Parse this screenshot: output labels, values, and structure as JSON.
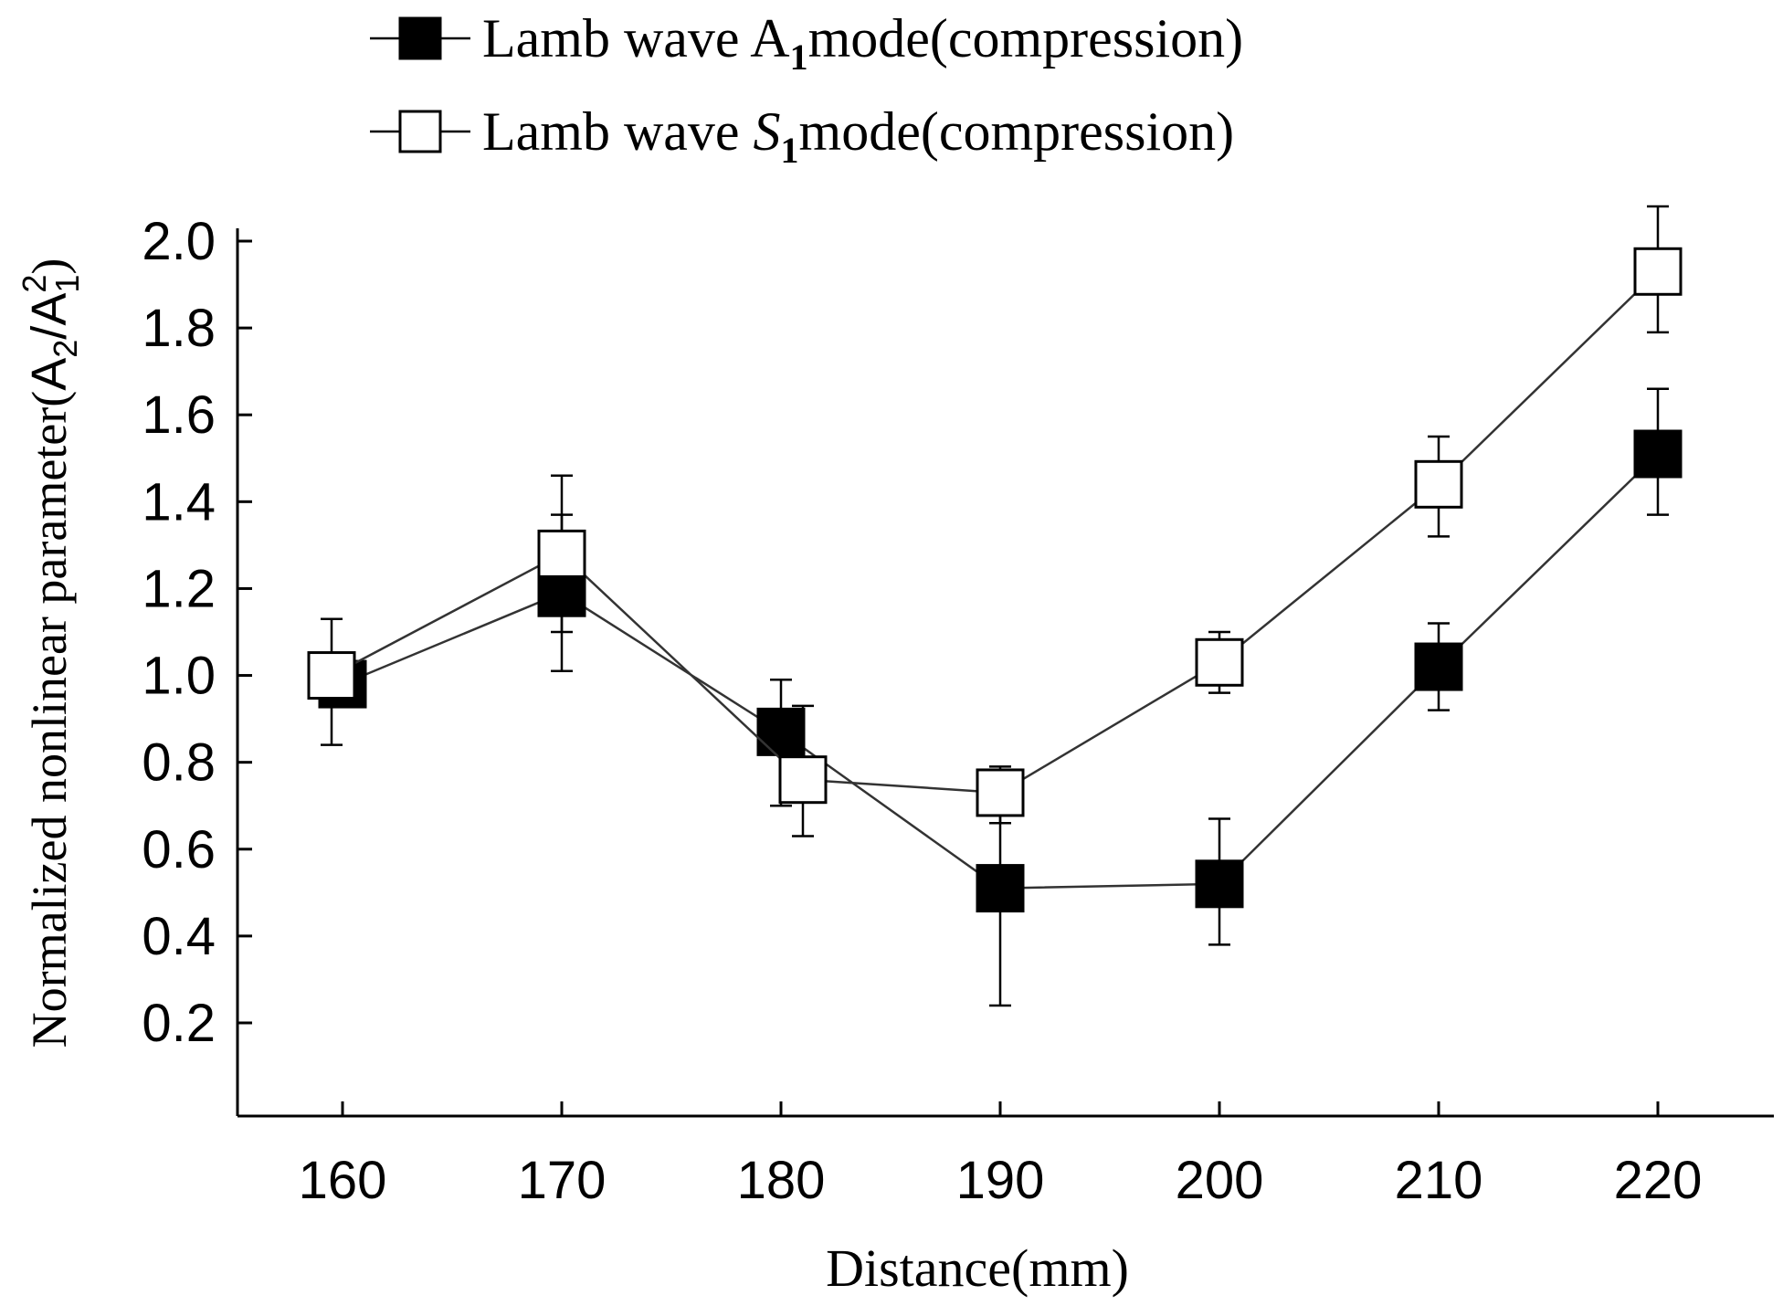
{
  "chart_data": {
    "type": "line",
    "title": "",
    "xlabel": "Distance(mm)",
    "ylabel": "Normalized nonlinear parameter",
    "ylabel_math": {
      "open": "(",
      "base1": "A",
      "sub1": "2",
      "slash": "/",
      "base2": "A",
      "sup2": "2",
      "sub2": "1",
      "close": ")"
    },
    "x": [
      160,
      170,
      180,
      190,
      200,
      210,
      220
    ],
    "xticks": [
      160,
      170,
      180,
      190,
      200,
      210,
      220
    ],
    "xlim": [
      155,
      225
    ],
    "yticks": [
      0.2,
      0.4,
      0.6,
      0.8,
      1.0,
      1.2,
      1.4,
      1.6,
      1.8,
      2.0
    ],
    "ytick_labels": [
      "0.2",
      "0.4",
      "0.6",
      "0.8",
      "1.0",
      "1.2",
      "1.4",
      "1.6",
      "1.8",
      "2.0"
    ],
    "ylim": [
      0.0,
      2.0
    ],
    "grid": false,
    "legend_position": "top-center",
    "series": [
      {
        "name": "Lamb wave A1mode(compression)",
        "legend": {
          "prefix": "Lamb wave ",
          "base": "A",
          "sub": "1",
          "suffix": "mode(compression)",
          "italic": false
        },
        "marker": "filled-square",
        "x": [
          160,
          170,
          180,
          190,
          200,
          210,
          220
        ],
        "values": [
          0.98,
          1.19,
          0.87,
          0.51,
          0.52,
          1.02,
          1.51
        ],
        "err_upper": [
          1.05,
          1.37,
          0.99,
          0.78,
          0.67,
          1.12,
          1.66
        ],
        "err_lower": [
          0.93,
          1.01,
          0.7,
          0.24,
          0.38,
          0.92,
          1.37
        ]
      },
      {
        "name": "Lamb wave S1mode(compression)",
        "legend": {
          "prefix": "Lamb wave ",
          "base": "S",
          "sub": "1",
          "suffix": "mode(compression)",
          "italic": true
        },
        "marker": "open-square",
        "x": [
          159.5,
          170,
          181,
          190,
          200,
          210,
          220
        ],
        "values": [
          1.0,
          1.28,
          0.76,
          0.73,
          1.03,
          1.44,
          1.93
        ],
        "err_upper": [
          1.13,
          1.46,
          0.93,
          0.79,
          1.1,
          1.55,
          2.08
        ],
        "err_lower": [
          0.84,
          1.1,
          0.63,
          0.66,
          0.96,
          1.32,
          1.79
        ]
      }
    ],
    "colors": {
      "axis": "#000000",
      "line": "#333333",
      "marker_fill": "#000000",
      "marker_open": "#ffffff"
    }
  }
}
